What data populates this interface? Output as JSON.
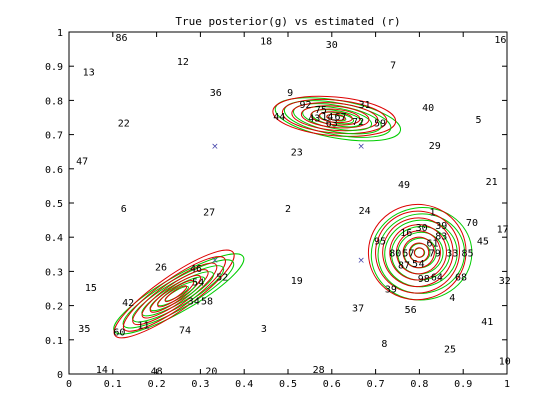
{
  "chart_data": {
    "type": "scatter",
    "title": "True posterior(g) vs estimated (r)",
    "xlabel": "",
    "ylabel": "",
    "xlim": [
      0,
      1
    ],
    "ylim": [
      0,
      1
    ],
    "x_ticks": [
      "0",
      "0.1",
      "0.2",
      "0.3",
      "0.4",
      "0.5",
      "0.6",
      "0.7",
      "0.8",
      "0.9",
      "1"
    ],
    "y_ticks": [
      "0",
      "0.1",
      "0.2",
      "0.3",
      "0.4",
      "0.5",
      "0.6",
      "0.7",
      "0.8",
      "0.9",
      "1"
    ],
    "grid": false,
    "colors": {
      "true": "#00cc00",
      "estimated": "#dd0000",
      "centers": "#4444aa",
      "text": "#000000"
    },
    "centers": [
      {
        "x": 0.333,
        "y": 0.667
      },
      {
        "x": 0.667,
        "y": 0.667
      },
      {
        "x": 0.333,
        "y": 0.333
      },
      {
        "x": 0.667,
        "y": 0.333
      }
    ],
    "labels": [
      {
        "t": "86",
        "x": 0.12,
        "y": 0.985
      },
      {
        "t": "18",
        "x": 0.45,
        "y": 0.975
      },
      {
        "t": "30",
        "x": 0.6,
        "y": 0.965
      },
      {
        "t": "16",
        "x": 0.985,
        "y": 0.98
      },
      {
        "t": "12",
        "x": 0.26,
        "y": 0.915
      },
      {
        "t": "13",
        "x": 0.045,
        "y": 0.885
      },
      {
        "t": "7",
        "x": 0.74,
        "y": 0.905
      },
      {
        "t": "36",
        "x": 0.335,
        "y": 0.825
      },
      {
        "t": "9",
        "x": 0.505,
        "y": 0.825
      },
      {
        "t": "92",
        "x": 0.54,
        "y": 0.79
      },
      {
        "t": "31",
        "x": 0.675,
        "y": 0.79
      },
      {
        "t": "40",
        "x": 0.82,
        "y": 0.78
      },
      {
        "t": "75",
        "x": 0.575,
        "y": 0.775
      },
      {
        "t": "44",
        "x": 0.48,
        "y": 0.755
      },
      {
        "t": "43",
        "x": 0.56,
        "y": 0.75
      },
      {
        "t": "14",
        "x": 0.59,
        "y": 0.755
      },
      {
        "t": "67",
        "x": 0.62,
        "y": 0.755
      },
      {
        "t": "63",
        "x": 0.6,
        "y": 0.735
      },
      {
        "t": "72",
        "x": 0.66,
        "y": 0.74
      },
      {
        "t": "59",
        "x": 0.71,
        "y": 0.735
      },
      {
        "t": "5",
        "x": 0.935,
        "y": 0.745
      },
      {
        "t": "22",
        "x": 0.125,
        "y": 0.735
      },
      {
        "t": "29",
        "x": 0.835,
        "y": 0.67
      },
      {
        "t": "23",
        "x": 0.52,
        "y": 0.65
      },
      {
        "t": "47",
        "x": 0.03,
        "y": 0.625
      },
      {
        "t": "21",
        "x": 0.965,
        "y": 0.565
      },
      {
        "t": "49",
        "x": 0.765,
        "y": 0.555
      },
      {
        "t": "6",
        "x": 0.125,
        "y": 0.485
      },
      {
        "t": "27",
        "x": 0.32,
        "y": 0.475
      },
      {
        "t": "2",
        "x": 0.5,
        "y": 0.485
      },
      {
        "t": "24",
        "x": 0.675,
        "y": 0.48
      },
      {
        "t": "1",
        "x": 0.83,
        "y": 0.475
      },
      {
        "t": "70",
        "x": 0.92,
        "y": 0.445
      },
      {
        "t": "17",
        "x": 0.99,
        "y": 0.425
      },
      {
        "t": "39",
        "x": 0.85,
        "y": 0.435
      },
      {
        "t": "30",
        "x": 0.805,
        "y": 0.43
      },
      {
        "t": "16",
        "x": 0.77,
        "y": 0.415
      },
      {
        "t": "83",
        "x": 0.85,
        "y": 0.405
      },
      {
        "t": "95",
        "x": 0.71,
        "y": 0.39
      },
      {
        "t": "61",
        "x": 0.83,
        "y": 0.385
      },
      {
        "t": "45",
        "x": 0.945,
        "y": 0.39
      },
      {
        "t": "80",
        "x": 0.745,
        "y": 0.355
      },
      {
        "t": "57",
        "x": 0.775,
        "y": 0.355
      },
      {
        "t": "79",
        "x": 0.835,
        "y": 0.355
      },
      {
        "t": "33",
        "x": 0.875,
        "y": 0.355
      },
      {
        "t": "85",
        "x": 0.91,
        "y": 0.355
      },
      {
        "t": "87",
        "x": 0.765,
        "y": 0.32
      },
      {
        "t": "5",
        "x": 0.79,
        "y": 0.325
      },
      {
        "t": "4",
        "x": 0.805,
        "y": 0.325
      },
      {
        "t": "26",
        "x": 0.21,
        "y": 0.315
      },
      {
        "t": "46",
        "x": 0.29,
        "y": 0.31
      },
      {
        "t": "64",
        "x": 0.84,
        "y": 0.285
      },
      {
        "t": "98",
        "x": 0.81,
        "y": 0.28
      },
      {
        "t": "68",
        "x": 0.895,
        "y": 0.285
      },
      {
        "t": "52",
        "x": 0.35,
        "y": 0.285
      },
      {
        "t": "19",
        "x": 0.52,
        "y": 0.275
      },
      {
        "t": "32",
        "x": 0.995,
        "y": 0.275
      },
      {
        "t": "15",
        "x": 0.05,
        "y": 0.255
      },
      {
        "t": "54",
        "x": 0.295,
        "y": 0.27
      },
      {
        "t": "39",
        "x": 0.735,
        "y": 0.25
      },
      {
        "t": "4",
        "x": 0.875,
        "y": 0.225
      },
      {
        "t": "58",
        "x": 0.315,
        "y": 0.215
      },
      {
        "t": "42",
        "x": 0.135,
        "y": 0.21
      },
      {
        "t": "34",
        "x": 0.285,
        "y": 0.215
      },
      {
        "t": "37",
        "x": 0.66,
        "y": 0.195
      },
      {
        "t": "56",
        "x": 0.78,
        "y": 0.19
      },
      {
        "t": "41",
        "x": 0.955,
        "y": 0.155
      },
      {
        "t": "11",
        "x": 0.17,
        "y": 0.145
      },
      {
        "t": "3",
        "x": 0.445,
        "y": 0.135
      },
      {
        "t": "35",
        "x": 0.035,
        "y": 0.135
      },
      {
        "t": "60",
        "x": 0.115,
        "y": 0.125
      },
      {
        "t": "74",
        "x": 0.265,
        "y": 0.13
      },
      {
        "t": "8",
        "x": 0.72,
        "y": 0.09
      },
      {
        "t": "25",
        "x": 0.87,
        "y": 0.075
      },
      {
        "t": "10",
        "x": 0.995,
        "y": 0.04
      },
      {
        "t": "14",
        "x": 0.075,
        "y": 0.015
      },
      {
        "t": "48",
        "x": 0.2,
        "y": 0.01
      },
      {
        "t": "20",
        "x": 0.325,
        "y": 0.01
      },
      {
        "t": "28",
        "x": 0.57,
        "y": 0.015
      }
    ],
    "contours": [
      {
        "cluster": "top",
        "cx": 0.61,
        "cy": 0.75,
        "rx": 0.145,
        "ry": 0.055,
        "angle": -8,
        "levels": [
          1.0,
          0.85,
          0.7,
          0.55,
          0.4,
          0.27,
          0.15
        ]
      },
      {
        "cluster": "lower-left",
        "cx": 0.245,
        "cy": 0.235,
        "rx": 0.17,
        "ry": 0.05,
        "angle": 32,
        "levels": [
          1.0,
          0.85,
          0.7,
          0.55,
          0.42,
          0.3,
          0.18
        ]
      },
      {
        "cluster": "right",
        "cx": 0.8,
        "cy": 0.355,
        "rx": 0.115,
        "ry": 0.135,
        "angle": 10,
        "levels": [
          1.0,
          0.86,
          0.72,
          0.58,
          0.45,
          0.32,
          0.2,
          0.1
        ]
      }
    ]
  }
}
